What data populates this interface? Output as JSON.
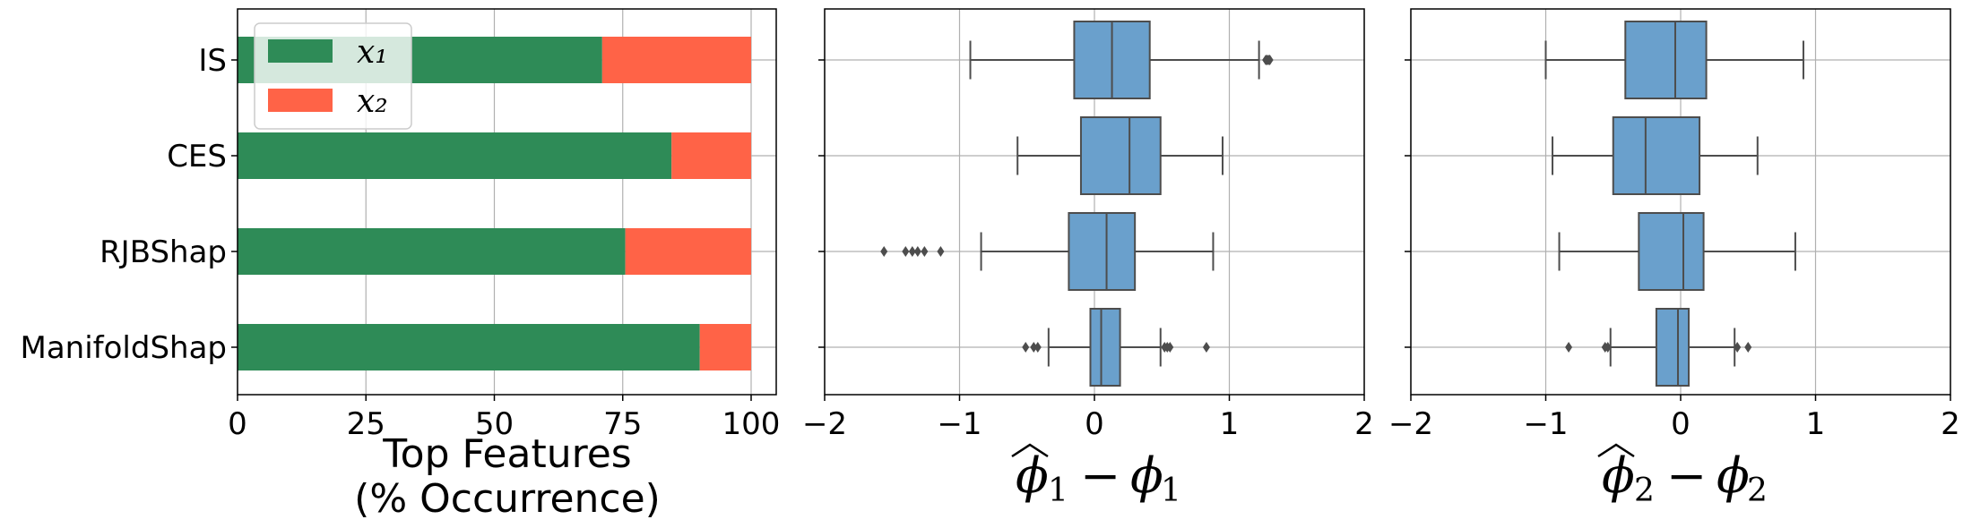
{
  "chart_data": [
    {
      "type": "bar",
      "orientation": "horizontal",
      "stacked": true,
      "categories": [
        "IS",
        "CES",
        "RJBShap",
        "ManifoldShap"
      ],
      "series": [
        {
          "name": "x₁",
          "values": [
            71,
            84.5,
            75.5,
            90
          ],
          "color": "#2e8b57"
        },
        {
          "name": "x₂",
          "values": [
            29,
            15.5,
            24.5,
            10
          ],
          "color": "#ff6347"
        }
      ],
      "xticks": [
        "0",
        "25",
        "50",
        "75",
        "100"
      ],
      "xlim": [
        0,
        105
      ],
      "xlabel_line1": "Top Features",
      "xlabel_line2": "(% Occurrence)",
      "grid": true,
      "legend_position": "top-left"
    },
    {
      "type": "boxplot",
      "orientation": "horizontal",
      "categories": [
        "IS",
        "CES",
        "RJBShap",
        "ManifoldShap"
      ],
      "boxes": [
        {
          "whisker_low": -0.92,
          "q1": -0.15,
          "median": 0.13,
          "q3": 0.41,
          "whisker_high": 1.22,
          "outliers": [
            1.27,
            1.28,
            1.29,
            1.3
          ]
        },
        {
          "whisker_low": -0.57,
          "q1": -0.1,
          "median": 0.26,
          "q3": 0.49,
          "whisker_high": 0.95,
          "outliers": []
        },
        {
          "whisker_low": -0.84,
          "q1": -0.19,
          "median": 0.09,
          "q3": 0.3,
          "whisker_high": 0.88,
          "outliers": [
            -1.56,
            -1.4,
            -1.35,
            -1.31,
            -1.26,
            -1.14
          ]
        },
        {
          "whisker_low": -0.34,
          "q1": -0.03,
          "median": 0.05,
          "q3": 0.19,
          "whisker_high": 0.49,
          "outliers": [
            -0.51,
            -0.45,
            -0.42,
            0.52,
            0.54,
            0.56,
            0.83
          ]
        }
      ],
      "box_color": "#6aa0cc",
      "xticks": [
        "−2",
        "−1",
        "0",
        "1",
        "2"
      ],
      "xlim": [
        -2,
        2
      ],
      "xlabel": {
        "hat": "ϕ",
        "sub": "1",
        "minus": "−",
        "base": "ϕ"
      },
      "grid": true
    },
    {
      "type": "boxplot",
      "orientation": "horizontal",
      "categories": [
        "IS",
        "CES",
        "RJBShap",
        "ManifoldShap"
      ],
      "boxes": [
        {
          "whisker_low": -1.0,
          "q1": -0.41,
          "median": -0.04,
          "q3": 0.19,
          "whisker_high": 0.91,
          "outliers": []
        },
        {
          "whisker_low": -0.95,
          "q1": -0.5,
          "median": -0.26,
          "q3": 0.14,
          "whisker_high": 0.57,
          "outliers": []
        },
        {
          "whisker_low": -0.9,
          "q1": -0.31,
          "median": 0.02,
          "q3": 0.17,
          "whisker_high": 0.85,
          "outliers": []
        },
        {
          "whisker_low": -0.52,
          "q1": -0.18,
          "median": -0.02,
          "q3": 0.06,
          "whisker_high": 0.4,
          "outliers": [
            -0.83,
            -0.56,
            -0.54,
            0.42,
            0.5
          ]
        }
      ],
      "box_color": "#6aa0cc",
      "xticks": [
        "−2",
        "−1",
        "0",
        "1",
        "2"
      ],
      "xlim": [
        -2,
        2
      ],
      "xlabel": {
        "hat": "ϕ",
        "sub": "2",
        "minus": "−",
        "base": "ϕ"
      },
      "grid": true
    }
  ]
}
